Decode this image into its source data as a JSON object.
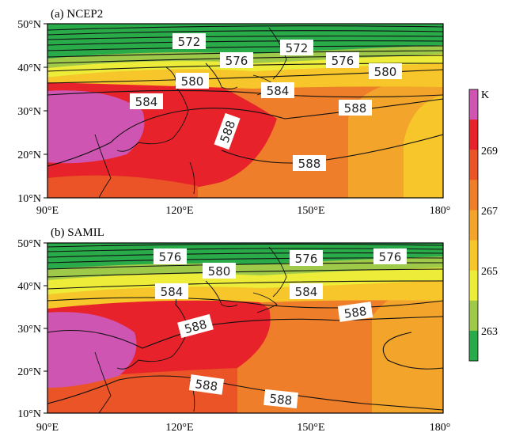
{
  "panels": [
    {
      "label": "(a)  NCEP2",
      "contour_labels": [
        "572",
        "576",
        "580",
        "584",
        "588",
        "588",
        "572",
        "576",
        "580",
        "584",
        "588"
      ]
    },
    {
      "label": "(b)  SAMIL",
      "contour_labels": [
        "576",
        "580",
        "576",
        "576",
        "584",
        "584",
        "588",
        "588",
        "588",
        "588"
      ]
    }
  ],
  "axes": {
    "lon_ticks": [
      "90°E",
      "120°E",
      "150°E",
      "180°"
    ],
    "lat_ticks": [
      "50°N",
      "40°N",
      "30°N",
      "20°N",
      "10°N"
    ]
  },
  "colorbar": {
    "unit": "K",
    "tick_labels": [
      "269",
      "267",
      "265",
      "263"
    ],
    "colors": [
      "#cf55b3",
      "#e8222a",
      "#ea5427",
      "#ee7e29",
      "#f3a42a",
      "#f6c62a",
      "#eded39",
      "#9ec949",
      "#2aab4a"
    ]
  }
}
